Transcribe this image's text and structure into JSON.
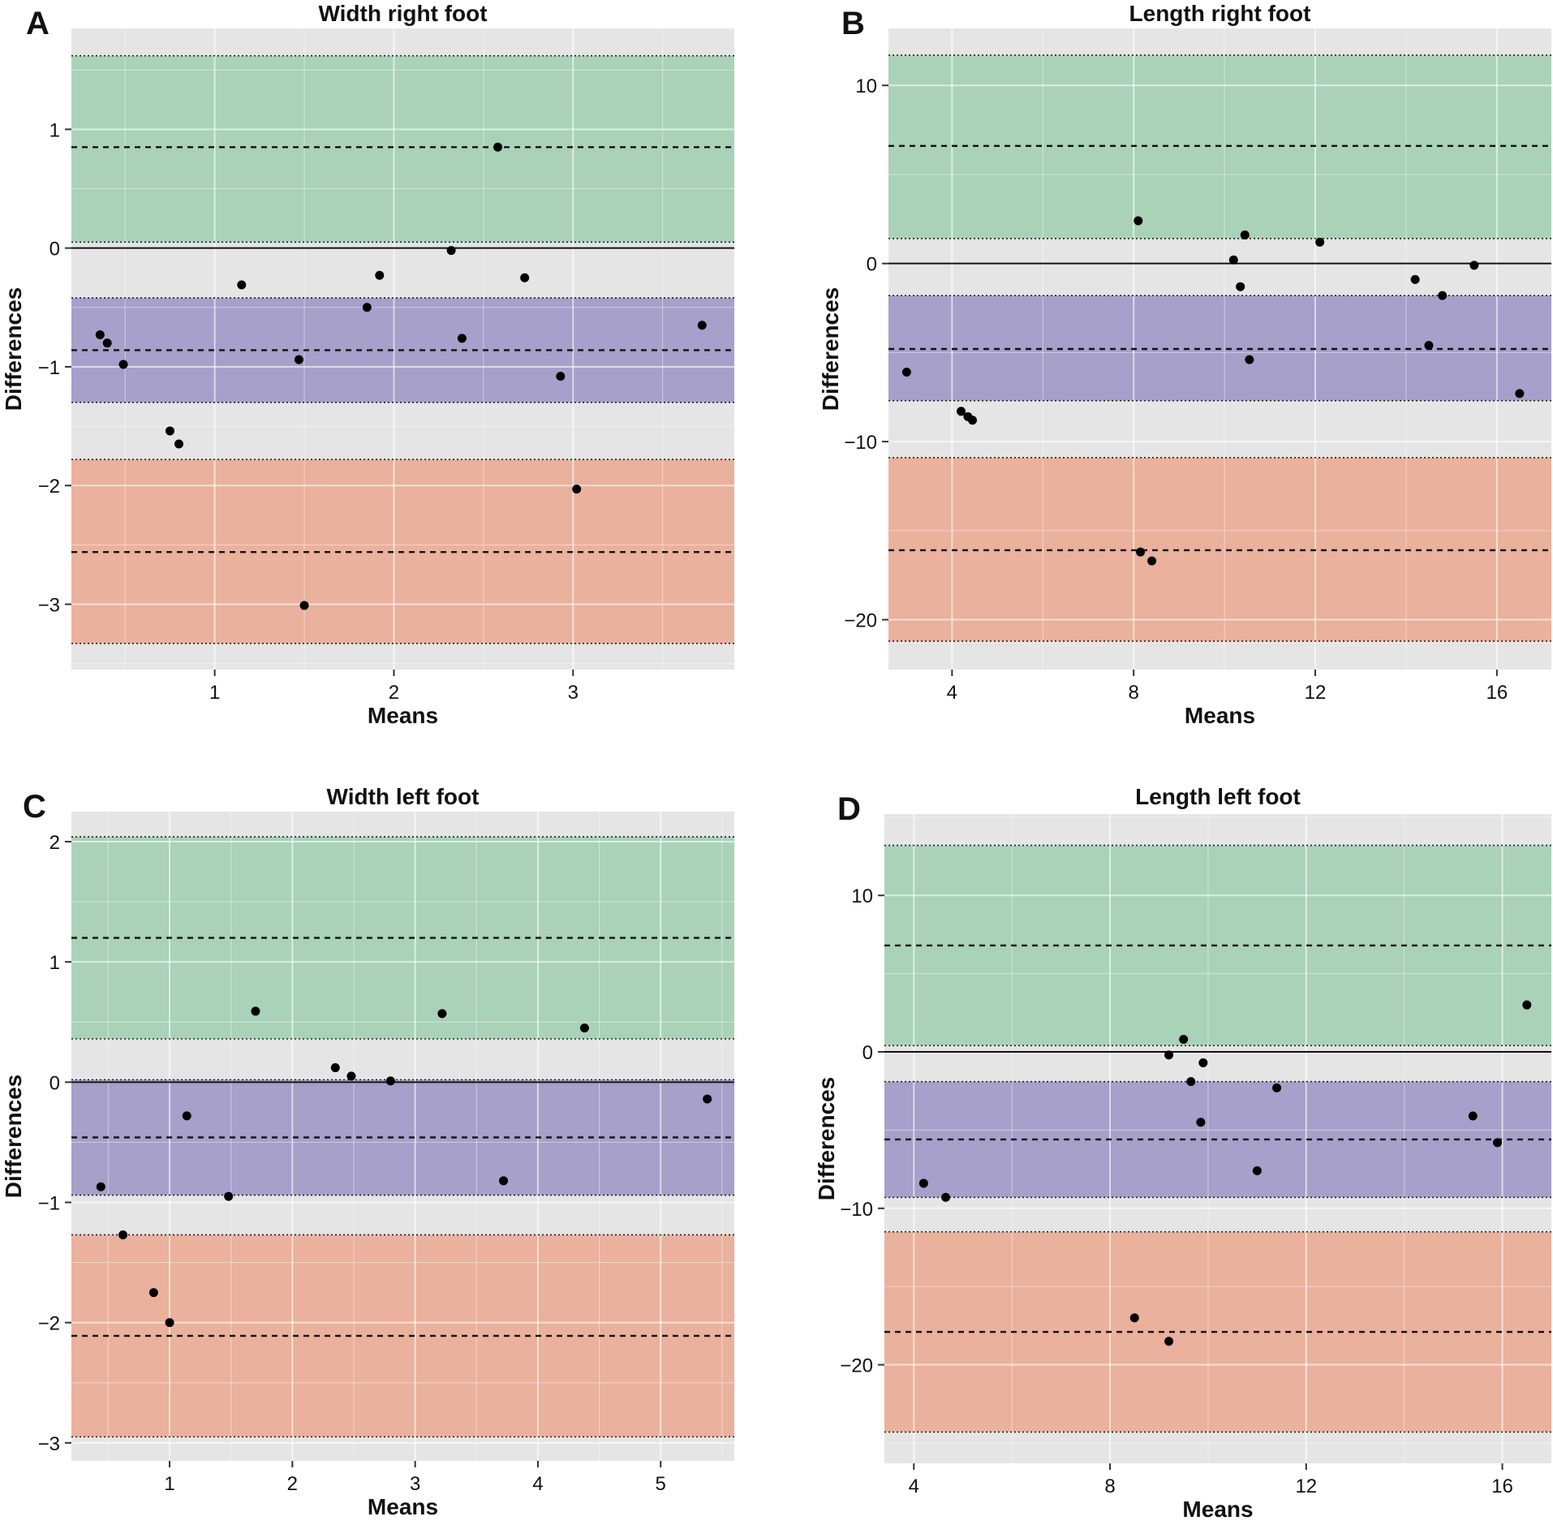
{
  "colors": {
    "panel_background": "#e5e5e5",
    "grid": "#ffffff",
    "upper_band": "#a9d2b8",
    "middle_band": "#a6a0ca",
    "lower_band": "#eab19c",
    "points": "#000000"
  },
  "chart_data": [
    {
      "letter": "A",
      "type": "scatter",
      "title": "Width right foot",
      "xlabel": "Means",
      "ylabel": "Differences",
      "xlim": [
        0.2,
        3.9
      ],
      "ylim": [
        -3.55,
        1.85
      ],
      "xticks": [
        1,
        2,
        3
      ],
      "yticks": [
        -3,
        -2,
        -1,
        0,
        1
      ],
      "grid": true,
      "zero_line": 0,
      "bands": [
        {
          "color": "upper",
          "low": 0.05,
          "high": 1.62,
          "mean": 0.85
        },
        {
          "color": "middle",
          "low": -1.3,
          "high": -0.42,
          "mean": -0.86
        },
        {
          "color": "lower",
          "low": -3.33,
          "high": -1.78,
          "mean": -2.56
        }
      ],
      "points": [
        {
          "x": 0.36,
          "y": -0.73
        },
        {
          "x": 0.4,
          "y": -0.8
        },
        {
          "x": 0.49,
          "y": -0.98
        },
        {
          "x": 0.75,
          "y": -1.54
        },
        {
          "x": 0.8,
          "y": -1.65
        },
        {
          "x": 1.15,
          "y": -0.31
        },
        {
          "x": 1.47,
          "y": -0.94
        },
        {
          "x": 1.5,
          "y": -3.01
        },
        {
          "x": 1.85,
          "y": -0.5
        },
        {
          "x": 1.92,
          "y": -0.23
        },
        {
          "x": 2.32,
          "y": -0.02
        },
        {
          "x": 2.38,
          "y": -0.76
        },
        {
          "x": 2.58,
          "y": 0.85
        },
        {
          "x": 2.73,
          "y": -0.25
        },
        {
          "x": 2.93,
          "y": -1.08
        },
        {
          "x": 3.02,
          "y": -2.03
        },
        {
          "x": 3.72,
          "y": -0.65
        }
      ]
    },
    {
      "letter": "B",
      "type": "scatter",
      "title": "Length right foot",
      "xlabel": "Means",
      "ylabel": "Differences",
      "xlim": [
        2.6,
        17.2
      ],
      "ylim": [
        -22.8,
        13.2
      ],
      "xticks": [
        4,
        8,
        12,
        16
      ],
      "yticks": [
        -20,
        -10,
        0,
        10
      ],
      "grid": true,
      "zero_line": 0,
      "bands": [
        {
          "color": "upper",
          "low": 1.4,
          "high": 11.7,
          "mean": 6.6
        },
        {
          "color": "middle",
          "low": -7.7,
          "high": -1.8,
          "mean": -4.8
        },
        {
          "color": "lower",
          "low": -21.2,
          "high": -10.9,
          "mean": -16.1
        }
      ],
      "points": [
        {
          "x": 3.0,
          "y": -6.1
        },
        {
          "x": 4.2,
          "y": -8.3
        },
        {
          "x": 4.35,
          "y": -8.6
        },
        {
          "x": 4.45,
          "y": -8.8
        },
        {
          "x": 8.1,
          "y": 2.4
        },
        {
          "x": 8.15,
          "y": -16.2
        },
        {
          "x": 8.4,
          "y": -16.7
        },
        {
          "x": 10.2,
          "y": 0.2
        },
        {
          "x": 10.35,
          "y": -1.3
        },
        {
          "x": 10.45,
          "y": 1.6
        },
        {
          "x": 10.55,
          "y": -5.4
        },
        {
          "x": 12.1,
          "y": 1.2
        },
        {
          "x": 14.2,
          "y": -0.9
        },
        {
          "x": 14.5,
          "y": -4.6
        },
        {
          "x": 14.8,
          "y": -1.8
        },
        {
          "x": 15.5,
          "y": -0.1
        },
        {
          "x": 16.5,
          "y": -7.3
        }
      ]
    },
    {
      "letter": "C",
      "type": "scatter",
      "title": "Width left foot",
      "xlabel": "Means",
      "ylabel": "Differences",
      "xlim": [
        0.2,
        5.6
      ],
      "ylim": [
        -3.15,
        2.25
      ],
      "xticks": [
        1,
        2,
        3,
        4,
        5
      ],
      "yticks": [
        -3,
        -2,
        -1,
        0,
        1,
        2
      ],
      "grid": true,
      "zero_line": 0,
      "bands": [
        {
          "color": "upper",
          "low": 0.36,
          "high": 2.04,
          "mean": 1.2
        },
        {
          "color": "middle",
          "low": -0.94,
          "high": 0.02,
          "mean": -0.46
        },
        {
          "color": "lower",
          "low": -2.95,
          "high": -1.27,
          "mean": -2.11
        }
      ],
      "points": [
        {
          "x": 0.44,
          "y": -0.87
        },
        {
          "x": 0.62,
          "y": -1.27
        },
        {
          "x": 0.87,
          "y": -1.75
        },
        {
          "x": 1.0,
          "y": -2.0
        },
        {
          "x": 1.14,
          "y": -0.28
        },
        {
          "x": 1.48,
          "y": -0.95
        },
        {
          "x": 1.7,
          "y": 0.59
        },
        {
          "x": 2.35,
          "y": 0.12
        },
        {
          "x": 2.48,
          "y": 0.05
        },
        {
          "x": 2.8,
          "y": 0.01
        },
        {
          "x": 3.22,
          "y": 0.57
        },
        {
          "x": 3.72,
          "y": -0.82
        },
        {
          "x": 4.38,
          "y": 0.45
        },
        {
          "x": 5.38,
          "y": -0.14
        }
      ]
    },
    {
      "letter": "D",
      "type": "scatter",
      "title": "Length left foot",
      "xlabel": "Means",
      "ylabel": "Differences",
      "xlim": [
        3.4,
        17.0
      ],
      "ylim": [
        -26.3,
        15.2
      ],
      "xticks": [
        4,
        8,
        12,
        16
      ],
      "yticks": [
        -20,
        -10,
        0,
        10
      ],
      "grid": true,
      "zero_line": 0,
      "bands": [
        {
          "color": "upper",
          "low": 0.4,
          "high": 13.2,
          "mean": 6.8
        },
        {
          "color": "middle",
          "low": -9.3,
          "high": -1.9,
          "mean": -5.6
        },
        {
          "color": "lower",
          "low": -24.3,
          "high": -11.5,
          "mean": -17.9
        }
      ],
      "points": [
        {
          "x": 4.2,
          "y": -8.4
        },
        {
          "x": 4.65,
          "y": -9.3
        },
        {
          "x": 8.5,
          "y": -17.0
        },
        {
          "x": 9.2,
          "y": -18.5
        },
        {
          "x": 9.2,
          "y": -0.2
        },
        {
          "x": 9.5,
          "y": 0.8
        },
        {
          "x": 9.65,
          "y": -1.9
        },
        {
          "x": 9.85,
          "y": -4.5
        },
        {
          "x": 9.9,
          "y": -0.7
        },
        {
          "x": 11.0,
          "y": -7.6
        },
        {
          "x": 11.4,
          "y": -2.3
        },
        {
          "x": 15.4,
          "y": -4.1
        },
        {
          "x": 15.9,
          "y": -5.8
        },
        {
          "x": 16.5,
          "y": 3.0
        }
      ]
    }
  ]
}
